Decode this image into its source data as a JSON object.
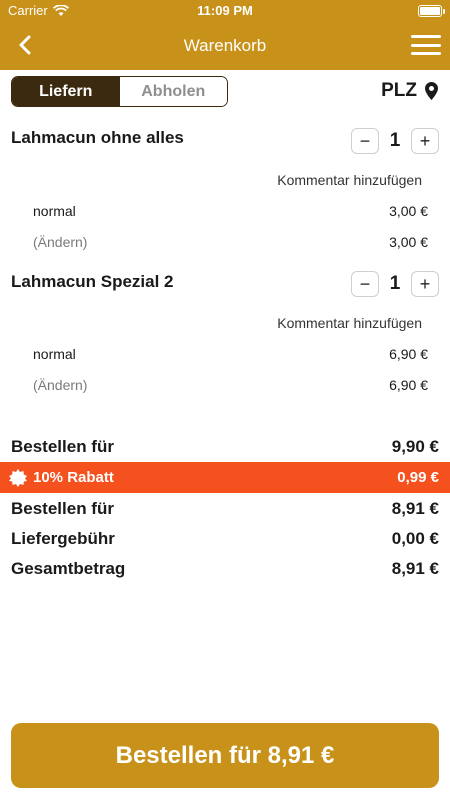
{
  "statusbar": {
    "carrier": "Carrier",
    "time": "11:09 PM"
  },
  "nav": {
    "title": "Warenkorb"
  },
  "segment": {
    "deliver": "Liefern",
    "pickup": "Abholen"
  },
  "plz": "PLZ",
  "items": [
    {
      "name": "Lahmacun ohne alles",
      "qty": "1",
      "minus": "−",
      "plus": "+",
      "comment": "Kommentar hinzufügen",
      "options": [
        {
          "label": "normal",
          "price": "3,00 €"
        },
        {
          "label": "(Ändern)",
          "price": "3,00 €"
        }
      ]
    },
    {
      "name": "Lahmacun Spezial 2",
      "qty": "1",
      "minus": "−",
      "plus": "+",
      "comment": "Kommentar hinzufügen",
      "options": [
        {
          "label": "normal",
          "price": "6,90 €"
        },
        {
          "label": "(Ändern)",
          "price": "6,90 €"
        }
      ]
    }
  ],
  "summary": {
    "subtotal_label": "Bestellen für",
    "subtotal_value": "9,90 €",
    "discount_label": "10% Rabatt",
    "discount_value": "0,99 €",
    "after_discount_label": "Bestellen für",
    "after_discount_value": "8,91 €",
    "delivery_label": "Liefergebühr",
    "delivery_value": "0,00 €",
    "total_label": "Gesamtbetrag",
    "total_value": "8,91 €"
  },
  "order_button": "Bestellen für 8,91 €",
  "colors": {
    "accent": "#c8921a",
    "dark": "#3b2a10",
    "discount": "#f4511e"
  }
}
